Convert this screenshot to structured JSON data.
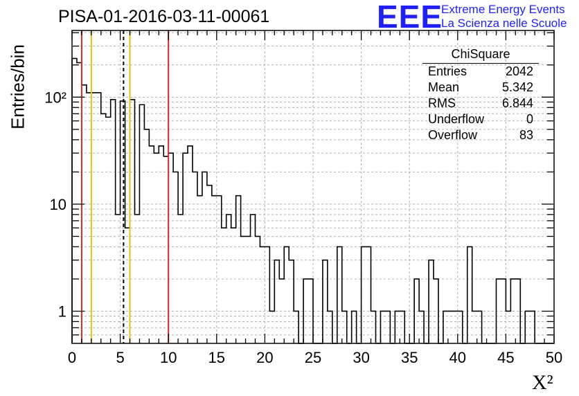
{
  "chart_data": {
    "type": "histogram",
    "title": "PISA-01-2016-03-11-00061",
    "xlabel": "X²",
    "ylabel": "Entries/bin",
    "xlim": [
      0,
      50
    ],
    "ylim": [
      0.5,
      420
    ],
    "yscale": "log",
    "grid": true,
    "bin_width": 0.5,
    "x_ticks": [
      "0",
      "5",
      "10",
      "15",
      "20",
      "25",
      "30",
      "35",
      "40",
      "45",
      "50"
    ],
    "y_ticks": [
      "1",
      "10",
      "10²"
    ],
    "y_tick_values": [
      1,
      10,
      100
    ],
    "bin_values": [
      230,
      210,
      130,
      110,
      110,
      110,
      70,
      65,
      95,
      8,
      92,
      6,
      95,
      8,
      85,
      50,
      35,
      30,
      35,
      28,
      30,
      20,
      8,
      30,
      35,
      20,
      12,
      20,
      15,
      12,
      12,
      6,
      8,
      6,
      12,
      5,
      5,
      8,
      5,
      4,
      4,
      1,
      3,
      2,
      4,
      3,
      1,
      0,
      2,
      2,
      0,
      0,
      3,
      1,
      0,
      4,
      1,
      0,
      1,
      0,
      4,
      4,
      1,
      0,
      1,
      1,
      0,
      1,
      1,
      0,
      0,
      2,
      1,
      0,
      3,
      2,
      0,
      1,
      1,
      1,
      1,
      0,
      4,
      1,
      1,
      0,
      0,
      0,
      2,
      2,
      1,
      2,
      2,
      0,
      1,
      1,
      0,
      0,
      0,
      0
    ],
    "vertical_lines": [
      {
        "x": 1.0,
        "color": "#d42a2a",
        "style": "solid"
      },
      {
        "x": 2.0,
        "color": "#e8c010",
        "style": "solid"
      },
      {
        "x": 5.342,
        "color": "#000000",
        "style": "dashed"
      },
      {
        "x": 6.0,
        "color": "#e8c010",
        "style": "solid"
      },
      {
        "x": 10.0,
        "color": "#d42a2a",
        "style": "solid"
      }
    ],
    "stats": {
      "title": "ChiSquare",
      "rows": [
        {
          "label": "Entries",
          "value": "2042"
        },
        {
          "label": "Mean",
          "value": "5.342"
        },
        {
          "label": "RMS",
          "value": "6.844"
        },
        {
          "label": "Underflow",
          "value": "0"
        },
        {
          "label": "Overflow",
          "value": "83"
        }
      ]
    }
  },
  "branding": {
    "logo": "EEE",
    "line1": "Extreme Energy Events",
    "line2": "La Scienza nelle Scuole",
    "color": "#1f1fff"
  }
}
